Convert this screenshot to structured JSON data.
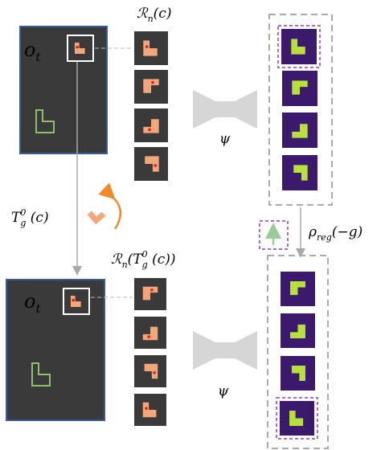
{
  "top_obs": {
    "base": "o",
    "sub": "t"
  },
  "bottom_obs": {
    "base": "o",
    "sub": "t"
  },
  "rn_top": {
    "base": "ℛ",
    "sub": "n",
    "rest": "(c)"
  },
  "rn_bottom": {
    "base": "ℛ",
    "sub": "n",
    "open": "(T",
    "sub2": "g",
    "sup2": "0",
    "close": " (c))"
  },
  "psi_top": "ψ",
  "psi_bottom": "ψ",
  "transform": {
    "base": "T",
    "sub": "g",
    "sup": "0",
    "rest": " (c)"
  },
  "rho": {
    "base": "ρ",
    "sub": "reg",
    "rest": "(−g)"
  }
}
